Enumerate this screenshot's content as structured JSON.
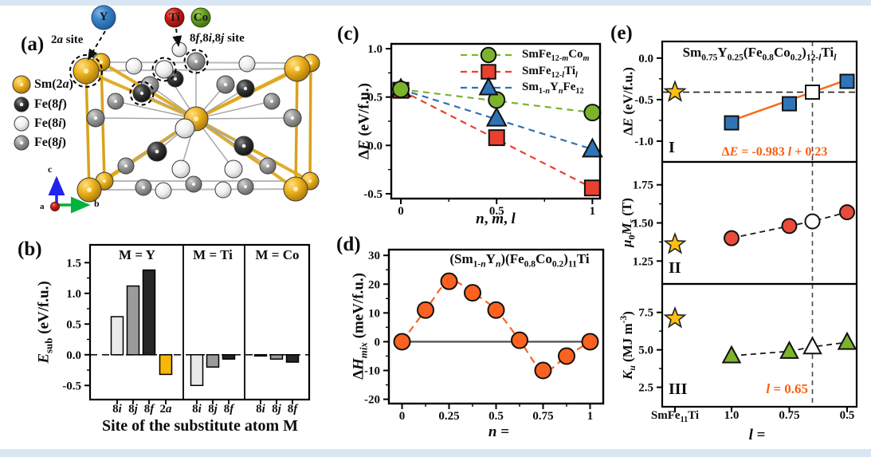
{
  "colors": {
    "accent_orange": "#f96011",
    "series_green": "#7cb32d",
    "series_red": "#e9402f",
    "series_blue": "#2d73b8",
    "gold": "#f5b70a",
    "star_gold": "#fcbf12",
    "border_blue": "#d9e7f5"
  },
  "panel_a": {
    "label": "(a)",
    "site_label_2a": "2*a* site",
    "site_label_8": "8*f*,8*i*,8*j* site",
    "substitute_atoms": [
      {
        "symbol": "Y"
      },
      {
        "symbol": "Ti"
      },
      {
        "symbol": "Co"
      }
    ],
    "legend": [
      {
        "label": "Sm(2*a*)",
        "type": "sm"
      },
      {
        "label": "Fe(8*f*)",
        "type": "f"
      },
      {
        "label": "Fe(8*i*)",
        "type": "i"
      },
      {
        "label": "Fe(8*j*)",
        "type": "j"
      }
    ],
    "axes": {
      "a": "a",
      "b": "b",
      "c": "c"
    }
  },
  "panel_b": {
    "label": "(b)"
  },
  "panel_c": {
    "label": "(c)"
  },
  "panel_d": {
    "label": "(d)"
  },
  "panel_e": {
    "label": "(e)"
  },
  "chart_data": [
    {
      "id": "b",
      "type": "bar",
      "ylabel": "*E*_{sub} (eV/f.u.)",
      "xlabel": "Site of the substitute atom M",
      "ytick_values": [
        -0.5,
        0.0,
        0.5,
        1.0,
        1.5
      ],
      "ytick_labels": [
        "-0.5",
        "0.0",
        "0.5",
        "1.0",
        "1.5"
      ],
      "ylim": [
        -0.73,
        1.79
      ],
      "groups": [
        {
          "label": "M = Y",
          "bars": [
            {
              "site": "8*i*",
              "value": 0.62,
              "color": "#e9e9e9"
            },
            {
              "site": "8*j*",
              "value": 1.12,
              "color": "#9b9b9b"
            },
            {
              "site": "8*f*",
              "value": 1.38,
              "color": "#262626"
            },
            {
              "site": "2*a*",
              "value": -0.32,
              "color": "#f5b70a"
            }
          ]
        },
        {
          "label": "M = Ti",
          "bars": [
            {
              "site": "8*i*",
              "value": -0.5,
              "color": "#e9e9e9"
            },
            {
              "site": "8*j*",
              "value": -0.2,
              "color": "#9b9b9b"
            },
            {
              "site": "8*f*",
              "value": -0.07,
              "color": "#262626"
            }
          ]
        },
        {
          "label": "M = Co",
          "bars": [
            {
              "site": "8*i*",
              "value": -0.02,
              "color": "#e9e9e9"
            },
            {
              "site": "8*j*",
              "value": -0.07,
              "color": "#9b9b9b"
            },
            {
              "site": "8*f*",
              "value": -0.12,
              "color": "#262626"
            }
          ]
        }
      ]
    },
    {
      "id": "c",
      "type": "scatter",
      "ylabel": "Δ*E* (eV/f.u.)",
      "xlabel": "*n*, *m*, *l*",
      "xtick_values": [
        0,
        0.5,
        1
      ],
      "xtick_labels": [
        "0",
        "0.5",
        "1"
      ],
      "ytick_values": [
        -0.5,
        0.0,
        0.5,
        1.0
      ],
      "ytick_labels": [
        "-0.5",
        "0.0",
        "0.5",
        "1.0"
      ],
      "xlim": [
        -0.05,
        1.04
      ],
      "ylim": [
        -0.55,
        1.05
      ],
      "series": [
        {
          "name": "SmFe_{12-*m*}Co_{*m*}",
          "marker": "circle",
          "color": "#7cb32d",
          "x": [
            0,
            0.5,
            1
          ],
          "y": [
            0.58,
            0.47,
            0.34
          ]
        },
        {
          "name": "SmFe_{12-*l*}Ti_{*l*}",
          "marker": "square",
          "color": "#e9402f",
          "x": [
            0,
            0.5,
            1
          ],
          "y": [
            0.57,
            0.08,
            -0.44
          ]
        },
        {
          "name": "Sm_{1-*n*}Y_{*n*}Fe_{12}",
          "marker": "triangle",
          "color": "#2d73b8",
          "x": [
            0,
            0.5,
            1
          ],
          "y": [
            0.58,
            0.28,
            -0.04
          ]
        }
      ]
    },
    {
      "id": "d",
      "type": "scatter",
      "title": "(Sm_{1-*n*}Y_{*n*})(Fe_{0.8}Co_{0.2})_{11}Ti",
      "ylabel": "Δ*H*_{*mix*} (meV/f.u.)",
      "xlabel": "*n* =",
      "xtick_values": [
        0,
        0.25,
        0.5,
        0.75,
        1
      ],
      "xtick_labels": [
        "0",
        "0.25",
        "0.5",
        "0.75",
        "1"
      ],
      "ytick_values": [
        -20,
        -10,
        0,
        10,
        20,
        30
      ],
      "ytick_labels": [
        "-20",
        "-10",
        "0",
        "10",
        "20",
        "30"
      ],
      "xlim": [
        -0.07,
        1.07
      ],
      "ylim": [
        -21.5,
        32
      ],
      "marker_color": "#fb611f",
      "x": [
        0,
        0.125,
        0.25,
        0.375,
        0.5,
        0.625,
        0.75,
        0.875,
        1
      ],
      "y": [
        0,
        11,
        21,
        17,
        11,
        0.5,
        -10,
        -5,
        0
      ]
    },
    {
      "id": "e",
      "type": "line",
      "title": "Sm_{0.75}Y_{0.25}(Fe_{0.8}Co_{0.2})_{12-*l*}Ti_{*l*}",
      "xlabel": "*l* =",
      "xtick_labels": [
        "SmFe_{11}Ti",
        "1.0",
        "0.75",
        "0.5"
      ],
      "vline_l": 0.65,
      "vline_label": "*l* = 0.65",
      "subplots": [
        {
          "tag": "I",
          "ylabel": "Δ*E* (eV/f.u.)",
          "ytick_values": [
            0.0,
            -0.5,
            -1.0
          ],
          "ytick_labels": [
            "0.0",
            "-0.5",
            "-1.0"
          ],
          "ylim": [
            -1.25,
            0.2
          ],
          "marker": "square",
          "color": "#2f74b8",
          "star_value": -0.41,
          "hline": -0.41,
          "fit_label": "Δ*E* = -0.983 *l* + 0.23",
          "fit_line": {
            "x1_l": 1.0,
            "v1": -0.753,
            "x2_l": 0.5,
            "v2": -0.262
          },
          "points": [
            {
              "l": 1.0,
              "value": -0.78
            },
            {
              "l": 0.75,
              "value": -0.55
            },
            {
              "l": 0.65,
              "value": -0.41,
              "open": true
            },
            {
              "l": 0.5,
              "value": -0.28
            }
          ]
        },
        {
          "tag": "II",
          "ylabel": "*μ*_{0}*M*_{*s*} (T)",
          "ytick_values": [
            1.75,
            1.5,
            1.25
          ],
          "ytick_labels": [
            "1.75",
            "1.50",
            "1.25"
          ],
          "ylim": [
            1.1,
            1.9
          ],
          "marker": "circle",
          "color": "#e94b3c",
          "star_value": 1.36,
          "points": [
            {
              "l": 1.0,
              "value": 1.4
            },
            {
              "l": 0.75,
              "value": 1.48
            },
            {
              "l": 0.65,
              "value": 1.51,
              "open": true
            },
            {
              "l": 0.5,
              "value": 1.57
            }
          ]
        },
        {
          "tag": "III",
          "ylabel": "*K*_{*u*} (MJ m^{-3})",
          "ytick_values": [
            7.5,
            5.0,
            2.5
          ],
          "ytick_labels": [
            "7.5",
            "5.0",
            "2.5"
          ],
          "ylim": [
            1.2,
            9.4
          ],
          "marker": "triangle",
          "color": "#7cb32d",
          "star_value": 7.1,
          "points": [
            {
              "l": 1.0,
              "value": 4.6
            },
            {
              "l": 0.75,
              "value": 4.9
            },
            {
              "l": 0.65,
              "value": 5.2,
              "open": true
            },
            {
              "l": 0.5,
              "value": 5.5
            }
          ]
        }
      ]
    }
  ]
}
